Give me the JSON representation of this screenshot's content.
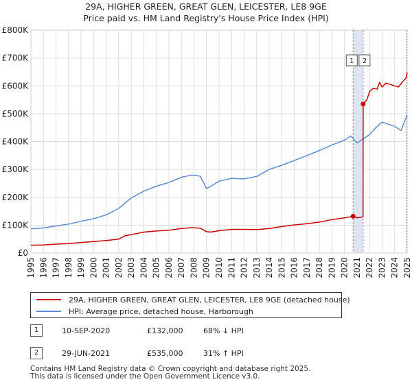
{
  "title": {
    "line1": "29A, HIGHER GREEN, GREAT GLEN, LEICESTER, LE8 9GE",
    "line2": "Price paid vs. HM Land Registry's House Price Index (HPI)"
  },
  "legend": {
    "property_label": "29A, HIGHER GREEN, GREAT GLEN, LEICESTER, LE8 9GE (detached house)",
    "hpi_label": "HPI: Average price, detached house, Harborough"
  },
  "transactions": [
    {
      "id": "1",
      "date": "10-SEP-2020",
      "price": "£132,000",
      "hpi_change": "68% ↓ HPI"
    },
    {
      "id": "2",
      "date": "29-JUN-2021",
      "price": "£535,000",
      "hpi_change": "31% ↑ HPI"
    }
  ],
  "footer": {
    "line1": "Contains HM Land Registry data © Crown copyright and database right 2025.",
    "line2": "This data is licensed under the Open Government Licence v3.0."
  },
  "colors": {
    "property": "#cc0000",
    "hpi": "#5b8bd0",
    "grid": "#dddddd",
    "highlight": "#dde6f5",
    "marker_line": "#cc0000"
  },
  "chart_data": {
    "type": "line",
    "title": "Price paid vs. HM Land Registry's House Price Index (HPI)",
    "xlabel": "",
    "ylabel": "",
    "xlim": [
      1995,
      2025
    ],
    "ylim": [
      0,
      800000
    ],
    "x_ticks": [
      1995,
      1996,
      1997,
      1998,
      1999,
      2000,
      2001,
      2002,
      2003,
      2004,
      2005,
      2006,
      2007,
      2008,
      2009,
      2010,
      2011,
      2012,
      2013,
      2014,
      2015,
      2016,
      2017,
      2018,
      2019,
      2020,
      2021,
      2022,
      2023,
      2024,
      2025
    ],
    "y_ticks": [
      0,
      100000,
      200000,
      300000,
      400000,
      500000,
      600000,
      700000,
      800000
    ],
    "y_tick_labels": [
      "£0",
      "£100K",
      "£200K",
      "£300K",
      "£400K",
      "£500K",
      "£600K",
      "£700K",
      "£800K"
    ],
    "grid": true,
    "highlight_range": [
      2020.69,
      2021.49
    ],
    "series": [
      {
        "name": "29A, HIGHER GREEN, GREAT GLEN, LEICESTER, LE8 9GE (detached house)",
        "x": [
          1995.0,
          1996.0,
          1997.0,
          1998.0,
          1999.0,
          2000.0,
          2001.0,
          2002.0,
          2002.5,
          2003.0,
          2004.0,
          2005.0,
          2006.0,
          2007.0,
          2007.8,
          2008.5,
          2009.0,
          2009.3,
          2010.0,
          2011.0,
          2012.0,
          2013.0,
          2014.0,
          2015.0,
          2016.0,
          2017.0,
          2018.0,
          2019.0,
          2020.0,
          2020.69,
          2021.0,
          2021.48,
          2021.49,
          2021.8,
          2022.0,
          2022.3,
          2022.6,
          2022.8,
          2023.0,
          2023.3,
          2023.6,
          2024.0,
          2024.3,
          2024.6,
          2024.9,
          2025.0
        ],
        "y": [
          28000,
          29000,
          32000,
          34000,
          38000,
          41000,
          45000,
          50000,
          62000,
          66000,
          75000,
          79000,
          82000,
          88000,
          91000,
          89000,
          77000,
          75000,
          80000,
          85000,
          85000,
          84000,
          88000,
          95000,
          101000,
          105000,
          111000,
          120000,
          126000,
          132000,
          126000,
          130000,
          535000,
          551000,
          580000,
          592000,
          588000,
          613000,
          596000,
          610000,
          606000,
          600000,
          596000,
          613000,
          628000,
          648000
        ]
      },
      {
        "name": "HPI: Average price, detached house, Harborough",
        "x": [
          1995.0,
          1996.0,
          1997.0,
          1998.0,
          1999.0,
          2000.0,
          2001.0,
          2002.0,
          2003.0,
          2004.0,
          2005.0,
          2006.0,
          2007.0,
          2007.8,
          2008.5,
          2009.0,
          2009.3,
          2010.0,
          2011.0,
          2012.0,
          2013.0,
          2014.0,
          2015.0,
          2016.0,
          2017.0,
          2018.0,
          2019.0,
          2020.0,
          2020.5,
          2021.0,
          2021.5,
          2022.0,
          2022.5,
          2023.0,
          2023.5,
          2024.0,
          2024.5,
          2025.0
        ],
        "y": [
          87000,
          90000,
          97000,
          104000,
          114000,
          123000,
          137000,
          160000,
          198000,
          222000,
          240000,
          253000,
          272000,
          280000,
          276000,
          232000,
          238000,
          258000,
          268000,
          266000,
          275000,
          300000,
          315000,
          332000,
          350000,
          368000,
          388000,
          405000,
          420000,
          395000,
          410000,
          425000,
          450000,
          470000,
          462000,
          455000,
          440000,
          495000
        ]
      }
    ],
    "markers": [
      {
        "label": "1",
        "x": 2020.69,
        "y": 132000
      },
      {
        "label": "2",
        "x": 2021.49,
        "y": 535000
      }
    ]
  }
}
